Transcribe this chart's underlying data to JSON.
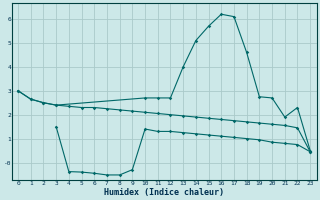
{
  "xlabel": "Humidex (Indice chaleur)",
  "bg_color": "#cce8e8",
  "grid_color": "#aacaca",
  "line_color": "#006868",
  "xlim": [
    -0.5,
    23.5
  ],
  "ylim": [
    -0.75,
    6.65
  ],
  "xticks": [
    0,
    1,
    2,
    3,
    4,
    5,
    6,
    7,
    8,
    9,
    10,
    11,
    12,
    13,
    14,
    15,
    16,
    17,
    18,
    19,
    20,
    21,
    22,
    23
  ],
  "yticks": [
    0,
    1,
    2,
    3,
    4,
    5,
    6
  ],
  "ytick_labels": [
    "-0",
    "1",
    "2",
    "3",
    "4",
    "5",
    "6"
  ],
  "series1_x": [
    0,
    1,
    2,
    3,
    10,
    11,
    12,
    13,
    14,
    15,
    16,
    17,
    18,
    19,
    20,
    21,
    22,
    23
  ],
  "series1_y": [
    3.0,
    2.65,
    2.5,
    2.4,
    2.7,
    2.7,
    2.7,
    4.0,
    5.1,
    5.7,
    6.2,
    6.1,
    4.6,
    2.75,
    2.7,
    1.9,
    2.3,
    0.5
  ],
  "series2_x": [
    0,
    1,
    2,
    3,
    4,
    5,
    6,
    7,
    8,
    9,
    10,
    11,
    12,
    13,
    14,
    15,
    16,
    17,
    18,
    19,
    20,
    21,
    22,
    23
  ],
  "series2_y": [
    3.0,
    2.65,
    2.5,
    2.4,
    2.35,
    2.3,
    2.3,
    2.25,
    2.2,
    2.15,
    2.1,
    2.05,
    2.0,
    1.95,
    1.9,
    1.85,
    1.8,
    1.75,
    1.7,
    1.65,
    1.6,
    1.55,
    1.45,
    0.45
  ],
  "series3_x": [
    3,
    4,
    5,
    6,
    7,
    8,
    9,
    10,
    11,
    12,
    13,
    14,
    15,
    16,
    17,
    18,
    19,
    20,
    21,
    22,
    23
  ],
  "series3_y": [
    1.5,
    -0.38,
    -0.4,
    -0.45,
    -0.52,
    -0.52,
    -0.3,
    1.4,
    1.3,
    1.3,
    1.25,
    1.2,
    1.15,
    1.1,
    1.05,
    1.0,
    0.95,
    0.85,
    0.8,
    0.75,
    0.45
  ]
}
